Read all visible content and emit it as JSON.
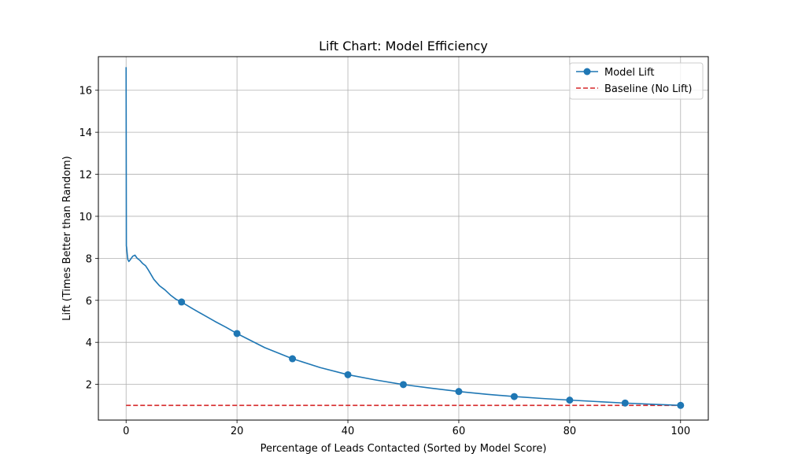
{
  "chart_data": {
    "type": "line",
    "title": "Lift Chart: Model Efficiency",
    "xlabel": "Percentage of Leads Contacted (Sorted by Model Score)",
    "ylabel": "Lift (Times Better than Random)",
    "xlim": [
      -5,
      105
    ],
    "ylim": [
      0.3,
      17.6
    ],
    "xticks": [
      0,
      20,
      40,
      60,
      80,
      100
    ],
    "yticks": [
      2,
      4,
      6,
      8,
      10,
      12,
      14,
      16
    ],
    "grid": true,
    "legend": "top-right",
    "series": [
      {
        "name": "Model Lift",
        "color": "#1f77b4",
        "marker": "circle",
        "x": [
          0,
          0.05,
          0.1,
          0.2,
          0.3,
          0.5,
          0.8,
          1.2,
          1.6,
          2.0,
          2.5,
          3.0,
          3.5,
          4.0,
          5.0,
          6.0,
          7.0,
          8.0,
          9.0,
          10,
          12,
          14,
          16,
          18,
          20,
          25,
          30,
          35,
          40,
          45,
          50,
          55,
          60,
          65,
          70,
          75,
          80,
          85,
          90,
          95,
          100
        ],
        "y": [
          17.1,
          8.6,
          8.5,
          8.2,
          7.95,
          7.85,
          7.95,
          8.1,
          8.15,
          8.0,
          7.9,
          7.75,
          7.65,
          7.45,
          7.0,
          6.7,
          6.5,
          6.25,
          6.05,
          5.92,
          5.6,
          5.3,
          5.0,
          4.72,
          4.42,
          3.75,
          3.22,
          2.8,
          2.46,
          2.21,
          1.99,
          1.82,
          1.66,
          1.53,
          1.42,
          1.33,
          1.25,
          1.18,
          1.11,
          1.05,
          1.0
        ],
        "markers_x": [
          10,
          20,
          30,
          40,
          50,
          60,
          70,
          80,
          90,
          100
        ],
        "markers_y": [
          5.92,
          4.42,
          3.22,
          2.46,
          1.99,
          1.66,
          1.42,
          1.25,
          1.11,
          1.0
        ]
      },
      {
        "name": "Baseline (No Lift)",
        "color": "#d62728",
        "style": "dashed",
        "x": [
          0,
          100
        ],
        "y": [
          1,
          1
        ]
      }
    ]
  }
}
